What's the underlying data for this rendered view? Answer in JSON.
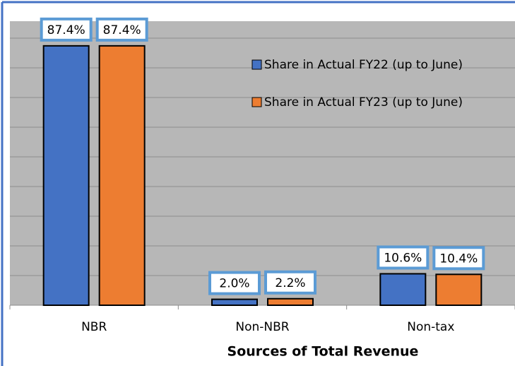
{
  "chart_data": {
    "type": "bar",
    "x_label": "Sources of Total Revenue",
    "categories": [
      "NBR",
      "Non-NBR",
      "Non-tax"
    ],
    "series": [
      {
        "name": "Share in Actual FY22 (up to June)",
        "color": "#4472c4",
        "values": [
          87.4,
          2.0,
          10.6
        ],
        "value_labels": [
          "87.4%",
          "2.0%",
          "10.6%"
        ]
      },
      {
        "name": "Share in Actual FY23 (up to June)",
        "color": "#ed7d31",
        "values": [
          87.4,
          2.2,
          10.4
        ],
        "value_labels": [
          "87.4%",
          "2.2%",
          "10.4%"
        ]
      }
    ],
    "ylim": [
      0,
      95.7
    ],
    "yticks": [
      0,
      10,
      20,
      30,
      40,
      50,
      60,
      70,
      80,
      90
    ],
    "grid": true,
    "legend": "upper right"
  }
}
